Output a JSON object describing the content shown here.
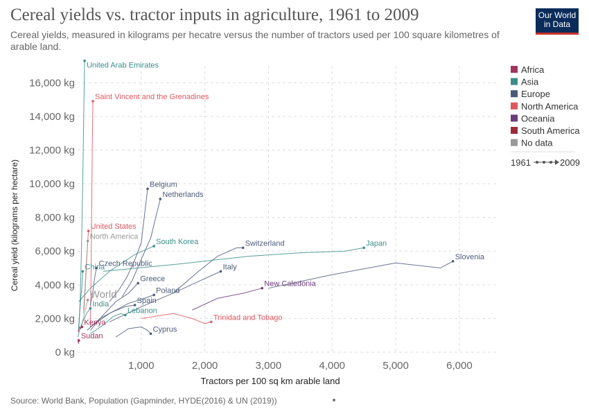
{
  "header": {
    "title": "Cereal yields vs. tractor inputs in agriculture, 1961 to 2009",
    "subtitle": "Cereal yields, measured in kilograms per hecatre versus the number of tractors used per 100 square kilometres of arable land.",
    "logo_line1": "Our World",
    "logo_line2": "in Data"
  },
  "footer": {
    "source": "Source: World Bank, Population (Gapminder, HYDE(2016) & UN (2019))"
  },
  "colors": {
    "Africa": "#a2345c",
    "Asia": "#3a8e8a",
    "Europe": "#4c5a7a",
    "North America": "#e0575f",
    "Oceania": "#6b3c7a",
    "South America": "#9c2b3a",
    "No data": "#999999",
    "World": "#999999"
  },
  "chart_data": {
    "type": "scatter",
    "xlabel": "Tractors per 100 sq km arable land",
    "ylabel": "Cereal yield (kilograms per hectare)",
    "xlim": [
      0,
      6600
    ],
    "ylim": [
      0,
      17000
    ],
    "xticks": [
      1000,
      2000,
      3000,
      4000,
      5000,
      6000
    ],
    "xtick_labels": [
      "1,000",
      "2,000",
      "3,000",
      "4,000",
      "5,000",
      "6,000"
    ],
    "yticks": [
      0,
      2000,
      4000,
      6000,
      8000,
      10000,
      12000,
      14000,
      16000
    ],
    "ytick_labels": [
      "0 kg",
      "2,000 kg",
      "4,000 kg",
      "6,000 kg",
      "8,000 kg",
      "10,000 kg",
      "12,000 kg",
      "14,000 kg",
      "16,000 kg"
    ],
    "grid": true,
    "legend_position": "right",
    "legend": [
      "Africa",
      "Asia",
      "Europe",
      "North America",
      "Oceania",
      "South America",
      "No data"
    ],
    "time_legend": {
      "start": "1961",
      "end": "2009"
    },
    "series": [
      {
        "name": "United Arab Emirates",
        "region": "Asia",
        "x": [
          20,
          40,
          60,
          80,
          100,
          110
        ],
        "y": [
          1500,
          3000,
          6000,
          10000,
          15000,
          17300
        ]
      },
      {
        "name": "Saint Vincent and the Grenadines",
        "region": "North America",
        "x": [
          200,
          210,
          220,
          230,
          240
        ],
        "y": [
          1500,
          4000,
          8000,
          12000,
          14900
        ]
      },
      {
        "name": "Belgium",
        "region": "Europe",
        "x": [
          500,
          650,
          780,
          900,
          1000,
          1100
        ],
        "y": [
          3000,
          3700,
          4500,
          5500,
          6500,
          9700
        ]
      },
      {
        "name": "Netherlands",
        "region": "Europe",
        "x": [
          700,
          850,
          1000,
          1150,
          1300
        ],
        "y": [
          3300,
          4200,
          5500,
          6800,
          9100
        ]
      },
      {
        "name": "United States",
        "region": "North America",
        "x": [
          100,
          130,
          150,
          170
        ],
        "y": [
          2500,
          4500,
          6000,
          7200
        ]
      },
      {
        "name": "North America",
        "region": "No data",
        "x": [
          90,
          120,
          140,
          160
        ],
        "y": [
          2300,
          4000,
          5500,
          6600
        ]
      },
      {
        "name": "South Korea",
        "region": "Asia",
        "x": [
          20,
          200,
          500,
          900,
          1200
        ],
        "y": [
          3000,
          3800,
          4800,
          5800,
          6300
        ]
      },
      {
        "name": "Switzerland",
        "region": "Europe",
        "x": [
          1500,
          1900,
          2200,
          2500,
          2600
        ],
        "y": [
          3500,
          4800,
          5700,
          6200,
          6200
        ]
      },
      {
        "name": "Japan",
        "region": "Asia",
        "x": [
          400,
          1500,
          2700,
          3500,
          4200,
          4500
        ],
        "y": [
          4800,
          5200,
          5700,
          5900,
          6000,
          6200
        ]
      },
      {
        "name": "Slovenia",
        "region": "Europe",
        "x": [
          3000,
          4000,
          5000,
          5700,
          5900
        ],
        "y": [
          3800,
          4600,
          5300,
          5000,
          5400
        ]
      },
      {
        "name": "Czech Republic",
        "region": "Europe",
        "x": [
          200,
          240,
          260,
          280,
          300
        ],
        "y": [
          2800,
          3600,
          4200,
          4700,
          5000
        ]
      },
      {
        "name": "Italy",
        "region": "Europe",
        "x": [
          500,
          1000,
          1500,
          1900,
          2250
        ],
        "y": [
          1800,
          2700,
          3500,
          4200,
          4800
        ]
      },
      {
        "name": "China",
        "region": "Asia",
        "x": [
          10,
          30,
          50,
          70,
          80
        ],
        "y": [
          1200,
          2200,
          3200,
          4000,
          4800
        ]
      },
      {
        "name": "Greece",
        "region": "Europe",
        "x": [
          200,
          400,
          600,
          800,
          950
        ],
        "y": [
          1300,
          2200,
          3000,
          3500,
          4100
        ]
      },
      {
        "name": "New Caledonia",
        "region": "Oceania",
        "x": [
          1800,
          2200,
          2600,
          2900
        ],
        "y": [
          2500,
          3200,
          3500,
          3800
        ]
      },
      {
        "name": "Poland",
        "region": "Europe",
        "x": [
          200,
          500,
          800,
          1050,
          1200
        ],
        "y": [
          1500,
          2300,
          2900,
          3200,
          3400
        ]
      },
      {
        "name": "World",
        "region": "No data",
        "x": [
          50,
          90,
          120,
          140,
          160
        ],
        "y": [
          1400,
          2000,
          2500,
          2800,
          3100
        ]
      },
      {
        "name": "India",
        "region": "Asia",
        "x": [
          5,
          30,
          80,
          140,
          200
        ],
        "y": [
          900,
          1300,
          1800,
          2300,
          2600
        ]
      },
      {
        "name": "Spain",
        "region": "Europe",
        "x": [
          150,
          350,
          550,
          750,
          900
        ],
        "y": [
          1300,
          2000,
          2400,
          2700,
          2800
        ]
      },
      {
        "name": "Lebanon",
        "region": "Asia",
        "x": [
          200,
          400,
          550,
          680,
          750
        ],
        "y": [
          1100,
          1600,
          2100,
          2300,
          2200
        ]
      },
      {
        "name": "Trinidad and Tobago",
        "region": "North America",
        "x": [
          1000,
          1500,
          1800,
          2000,
          2100
        ],
        "y": [
          2000,
          2300,
          2000,
          1700,
          1800
        ]
      },
      {
        "name": "Kenya",
        "region": "Africa",
        "x": [
          10,
          30,
          50,
          60,
          70
        ],
        "y": [
          1200,
          1500,
          1400,
          1600,
          1500
        ]
      },
      {
        "name": "Cyprus",
        "region": "Europe",
        "x": [
          600,
          800,
          1000,
          1100,
          1150
        ],
        "y": [
          900,
          1400,
          1500,
          1300,
          1100
        ]
      },
      {
        "name": "Sudan",
        "region": "Africa",
        "x": [
          5,
          10,
          15,
          20
        ],
        "y": [
          600,
          800,
          500,
          700
        ]
      }
    ]
  }
}
